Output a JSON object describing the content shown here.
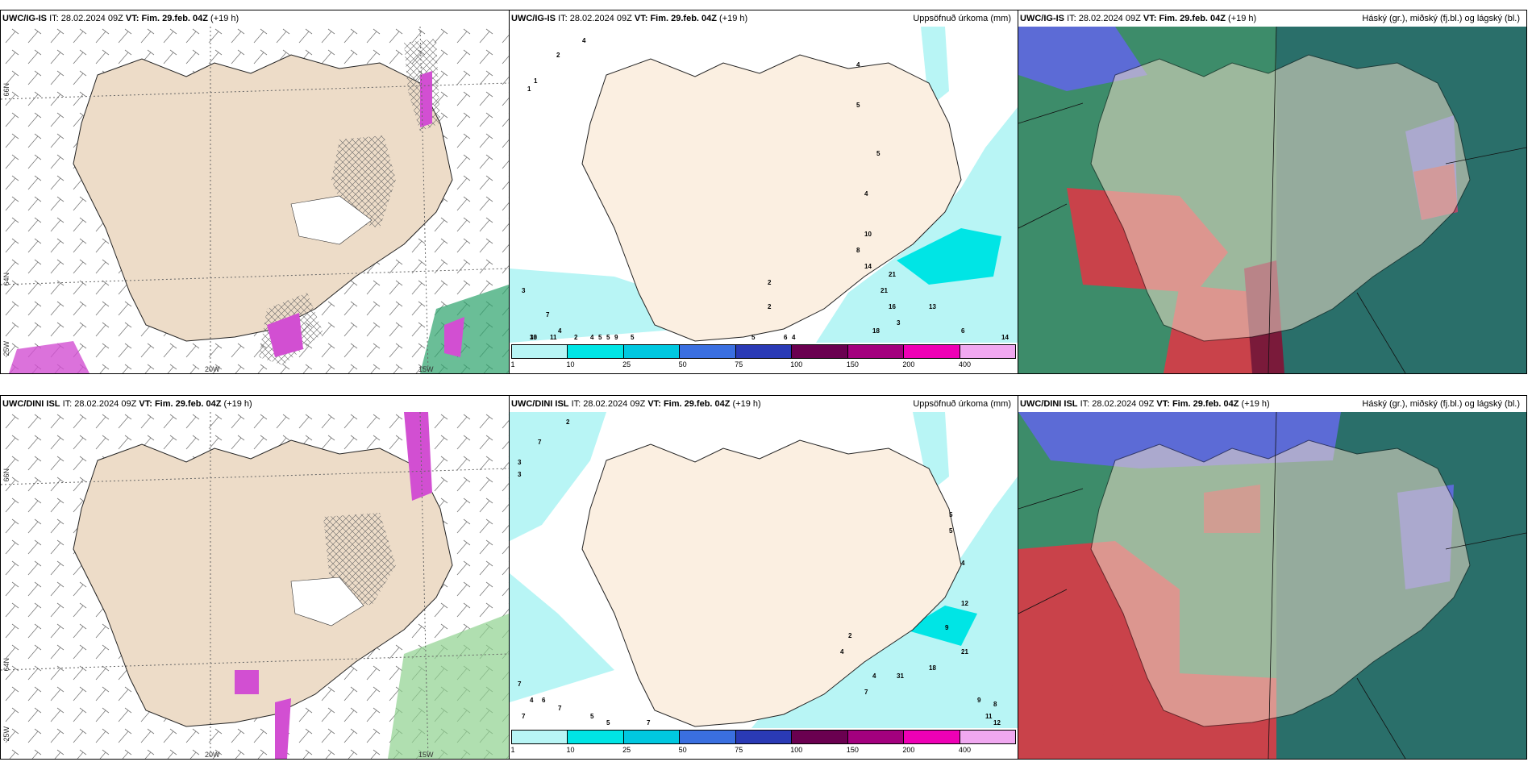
{
  "panels": [
    {
      "id": "p1",
      "model": "UWC/IG-IS",
      "it_label": "IT:",
      "it": "28.02.2024 09Z",
      "vt_label": "VT:",
      "vt": "Fim. 29.feb. 04Z",
      "lead": "(+19 h)",
      "right": "",
      "axis_labels": [
        "66N",
        "64N",
        "20W",
        "15W",
        "25W"
      ]
    },
    {
      "id": "p2",
      "model": "UWC/IG-IS",
      "it_label": "IT:",
      "it": "28.02.2024 09Z",
      "vt_label": "VT:",
      "vt": "Fim. 29.feb. 04Z",
      "lead": "(+19 h)",
      "right": "Uppsöfnuð úrkoma (mm)",
      "values": [
        "4",
        "2",
        "1",
        "1",
        "4",
        "5",
        "5",
        "4",
        "10",
        "8",
        "14",
        "21",
        "21",
        "16",
        "18",
        "13",
        "3",
        "6",
        "14",
        "2",
        "2",
        "3",
        "7",
        "4",
        "2",
        "5",
        "4",
        "30",
        "13",
        "11",
        "5",
        "9",
        "6",
        "4",
        "5",
        "5"
      ]
    },
    {
      "id": "p3",
      "model": "UWC/IG-IS",
      "it_label": "IT:",
      "it": "28.02.2024 09Z",
      "vt_label": "VT:",
      "vt": "Fim. 29.feb. 04Z",
      "lead": "(+19 h)",
      "right": "Háský (gr.), miðský (fj.bl.) og lágský (bl.)"
    },
    {
      "id": "p4",
      "model": "UWC/DINI ISL",
      "it_label": "IT:",
      "it": "28.02.2024 09Z",
      "vt_label": "VT:",
      "vt": "Fim. 29.feb. 04Z",
      "lead": "(+19 h)",
      "right": "",
      "axis_labels": [
        "66N",
        "64N",
        "20W",
        "15W",
        "25W"
      ]
    },
    {
      "id": "p5",
      "model": "UWC/DINI ISL",
      "it_label": "IT:",
      "it": "28.02.2024 09Z",
      "vt_label": "VT:",
      "vt": "Fim. 29.feb. 04Z",
      "lead": "(+19 h)",
      "right": "Uppsöfnuð úrkoma (mm)",
      "values": [
        "2",
        "7",
        "3",
        "3",
        "5",
        "5",
        "4",
        "12",
        "9",
        "21",
        "18",
        "31",
        "4",
        "4",
        "7",
        "9",
        "8",
        "11",
        "12",
        "2",
        "7",
        "4",
        "6",
        "7",
        "7",
        "5",
        "5",
        "7"
      ]
    },
    {
      "id": "p6",
      "model": "UWC/DINI ISL",
      "it_label": "IT:",
      "it": "28.02.2024 09Z",
      "vt_label": "VT:",
      "vt": "Fim. 29.feb. 04Z",
      "lead": "(+19 h)",
      "right": "Háský (gr.), miðský (fj.bl.) og lágský (bl.)"
    }
  ],
  "legend": {
    "ticks": [
      "1",
      "10",
      "25",
      "50",
      "75",
      "100",
      "150",
      "200",
      "400"
    ],
    "colors": [
      "#b8f5f5",
      "#00e5e5",
      "#00c8e0",
      "#3a6fe0",
      "#2a3ab5",
      "#6a0050",
      "#a3007e",
      "#ee00b5",
      "#f0a8f0"
    ]
  },
  "colors": {
    "land": "#eddcc8",
    "land_light": "#fbefe1",
    "sea": "#ffffff",
    "precip_light": "#b8f5f5",
    "precip_mid": "#00e5e5",
    "magenta": "#d24fd2",
    "green": "#2ba36b"
  }
}
